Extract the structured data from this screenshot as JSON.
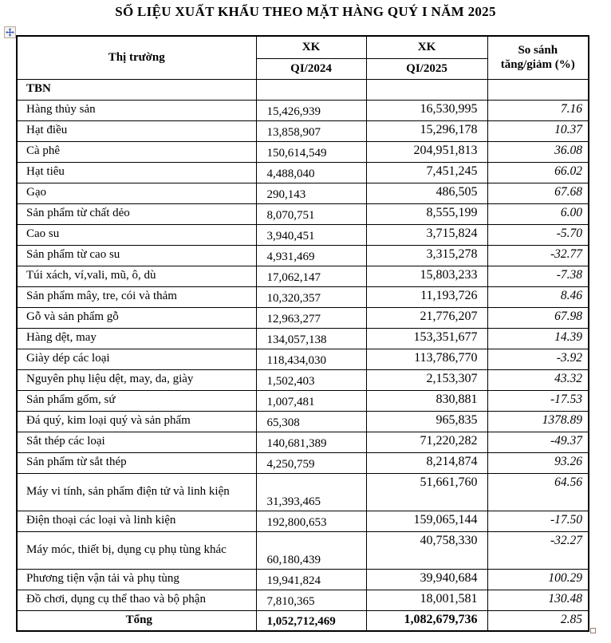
{
  "title": "SỐ LIỆU XUẤT KHẨU THEO MẶT HÀNG QUÝ I NĂM 2025",
  "icons": {
    "move_handle": "table-move-handle",
    "resize_handle": "table-resize-handle"
  },
  "colors": {
    "text": "#000000",
    "background": "#ffffff",
    "table_border": "#000000",
    "move_handle_arrow": "#3a56c0",
    "resize_handle_border": "#9c7f6e"
  },
  "table": {
    "header": {
      "market": "Thị trường",
      "xk": "XK",
      "q1_2024": "QI/2024",
      "q1_2025": "QI/2025",
      "compare": "So sánh tăng/giảm (%)"
    },
    "group_label": "TBN",
    "rows": [
      {
        "label": "Hàng thủy sản",
        "xk_2024": "15,426,939",
        "xk_2025": "16,530,995",
        "change_pct": "7.16"
      },
      {
        "label": "Hạt điều",
        "xk_2024": "13,858,907",
        "xk_2025": "15,296,178",
        "change_pct": "10.37"
      },
      {
        "label": "Cà phê",
        "xk_2024": "150,614,549",
        "xk_2025": "204,951,813",
        "change_pct": "36.08"
      },
      {
        "label": "Hạt tiêu",
        "xk_2024": "4,488,040",
        "xk_2025": "7,451,245",
        "change_pct": "66.02"
      },
      {
        "label": "Gạo",
        "xk_2024": "290,143",
        "xk_2025": "486,505",
        "change_pct": "67.68"
      },
      {
        "label": "Sản phẩm từ chất dẻo",
        "xk_2024": "8,070,751",
        "xk_2025": "8,555,199",
        "change_pct": "6.00"
      },
      {
        "label": "Cao su",
        "xk_2024": "3,940,451",
        "xk_2025": "3,715,824",
        "change_pct": "-5.70"
      },
      {
        "label": "Sản phẩm từ cao su",
        "xk_2024": "4,931,469",
        "xk_2025": "3,315,278",
        "change_pct": "-32.77"
      },
      {
        "label": "Túi xách, ví,vali, mũ, ô, dù",
        "xk_2024": "17,062,147",
        "xk_2025": "15,803,233",
        "change_pct": "-7.38"
      },
      {
        "label": "Sản phẩm mây, tre, cói và thảm",
        "xk_2024": "10,320,357",
        "xk_2025": "11,193,726",
        "change_pct": "8.46"
      },
      {
        "label": "Gỗ và sản phẩm gỗ",
        "xk_2024": "12,963,277",
        "xk_2025": "21,776,207",
        "change_pct": "67.98"
      },
      {
        "label": "Hàng dệt, may",
        "xk_2024": "134,057,138",
        "xk_2025": "153,351,677",
        "change_pct": "14.39"
      },
      {
        "label": "Giày dép các loại",
        "xk_2024": "118,434,030",
        "xk_2025": "113,786,770",
        "change_pct": "-3.92"
      },
      {
        "label": "Nguyên phụ liệu dệt, may, da, giày",
        "xk_2024": "1,502,403",
        "xk_2025": "2,153,307",
        "change_pct": "43.32"
      },
      {
        "label": "Sản phẩm gốm, sứ",
        "xk_2024": "1,007,481",
        "xk_2025": "830,881",
        "change_pct": "-17.53"
      },
      {
        "label": "Đá quý, kim loại quý và sản phẩm",
        "xk_2024": "65,308",
        "xk_2025": "965,835",
        "change_pct": "1378.89"
      },
      {
        "label": "Sắt thép các loại",
        "xk_2024": "140,681,389",
        "xk_2025": "71,220,282",
        "change_pct": "-49.37"
      },
      {
        "label": "Sản phẩm từ sắt thép",
        "xk_2024": "4,250,759",
        "xk_2025": "8,214,874",
        "change_pct": "93.26"
      },
      {
        "label": "Máy vi tính, sản phẩm điện tử và linh kiện",
        "xk_2024": "31,393,465",
        "xk_2025": "51,661,760",
        "change_pct": "64.56"
      },
      {
        "label": "Điện thoại các loại và linh kiện",
        "xk_2024": "192,800,653",
        "xk_2025": "159,065,144",
        "change_pct": "-17.50"
      },
      {
        "label": "Máy móc, thiết bị, dụng cụ phụ tùng khác",
        "xk_2024": "60,180,439",
        "xk_2025": "40,758,330",
        "change_pct": "-32.27"
      },
      {
        "label": "Phương tiện vận tải và phụ tùng",
        "xk_2024": "19,941,824",
        "xk_2025": "39,940,684",
        "change_pct": "100.29"
      },
      {
        "label": "Đồ chơi, dụng cụ thể thao và bộ phận",
        "xk_2024": "7,810,365",
        "xk_2025": "18,001,581",
        "change_pct": "130.48"
      }
    ],
    "total": {
      "label": "Tổng",
      "xk_2024": "1,052,712,469",
      "xk_2025": "1,082,679,736",
      "change_pct": "2.85"
    }
  }
}
